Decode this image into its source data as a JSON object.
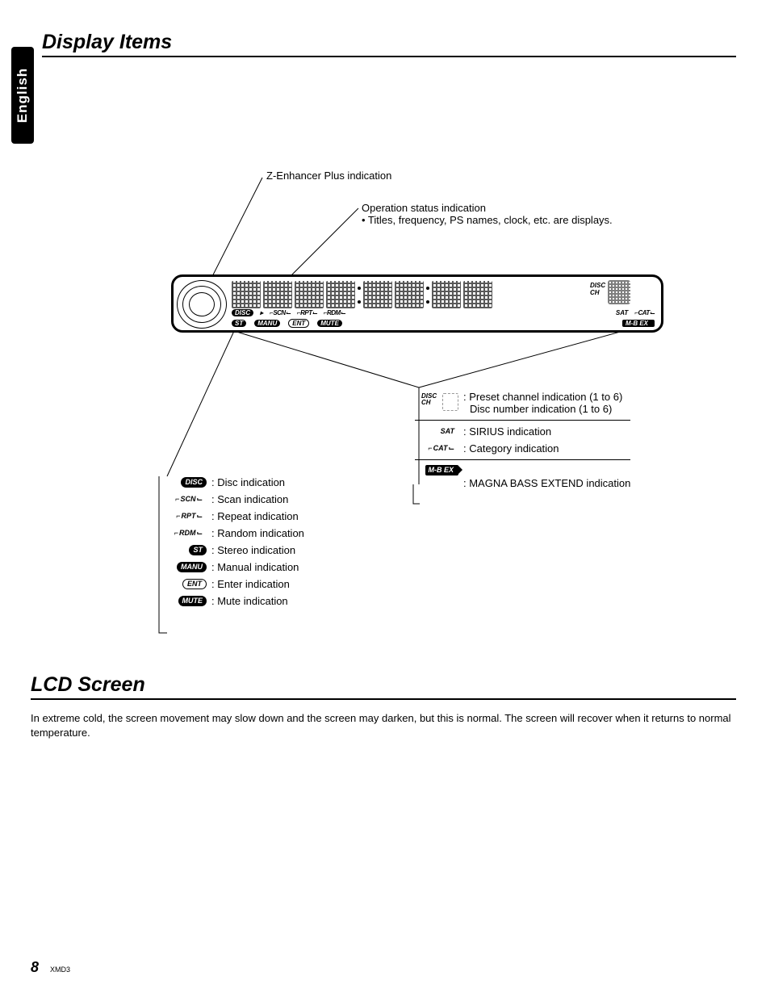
{
  "language_tab": "English",
  "heading_display_items": "Display Items",
  "heading_lcd_screen": "LCD Screen",
  "lcd_body": "In extreme cold, the screen movement may slow down and the screen may darken, but this is normal. The screen will recover when it returns to normal temperature.",
  "callout_zenhancer": "Z-Enhancer Plus indication",
  "callout_status_title": "Operation status indication",
  "callout_status_bullet": "• Titles, frequency, PS names, clock, etc. are displays.",
  "lcd_labels": {
    "disc": "DISC",
    "ch": "CH",
    "scn": "SCN",
    "rpt": "RPT",
    "rdm": "RDM",
    "st": "ST",
    "manu": "MANU",
    "ent": "ENT",
    "mute": "MUTE",
    "sat": "SAT",
    "cat": "CAT",
    "mbex": "M-B EX"
  },
  "legend_left": [
    {
      "icon": "DISC",
      "style": "pill-b",
      "text": ": Disc indication"
    },
    {
      "icon": "SCN",
      "style": "brkt",
      "text": ": Scan indication"
    },
    {
      "icon": "RPT",
      "style": "brkt",
      "text": ": Repeat indication"
    },
    {
      "icon": "RDM",
      "style": "brkt",
      "text": ": Random indication"
    },
    {
      "icon": "ST",
      "style": "pill-b",
      "text": ": Stereo indication"
    },
    {
      "icon": "MANU",
      "style": "pill-b",
      "text": ": Manual indication"
    },
    {
      "icon": "ENT",
      "style": "pill-w",
      "text": ": Enter indication"
    },
    {
      "icon": "MUTE",
      "style": "pill-b",
      "text": ": Mute indication"
    }
  ],
  "legend_right": {
    "preset_line1": ": Preset channel indication (1 to 6)",
    "preset_line2": "Disc number indication (1 to 6)",
    "sat": ": SIRIUS indication",
    "cat": ": Category indication",
    "mbex": ": MAGNA BASS EXTEND indication"
  },
  "footer": {
    "page": "8",
    "model": "XMD3"
  }
}
